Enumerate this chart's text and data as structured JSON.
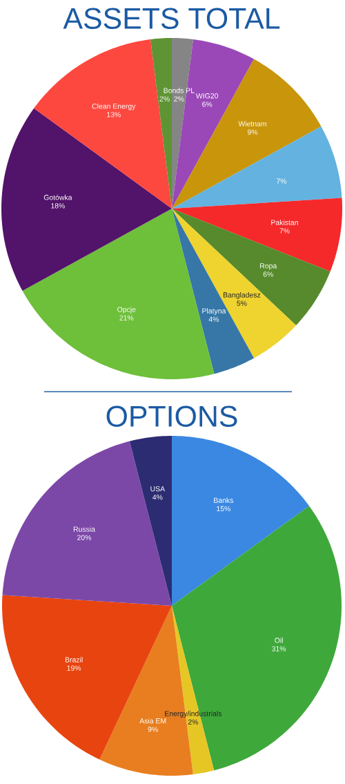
{
  "chart_data": [
    {
      "type": "pie",
      "title": "ASSETS TOTAL",
      "categories": [
        "Bonds PL",
        "WIG20",
        "Wietnam",
        null,
        "Pakistan",
        "Ropa",
        "Bangladesz",
        "Platyna",
        "Opcje",
        "Gotówka",
        "Clean Energy",
        null
      ],
      "values": [
        2,
        6,
        9,
        7,
        7,
        6,
        5,
        4,
        21,
        18,
        13,
        2
      ],
      "value_labels": [
        "2%",
        "6%",
        "9%",
        "7%",
        "7%",
        "6%",
        "5%",
        "4%",
        "21%",
        "18%",
        "13%",
        "2%"
      ],
      "colors": [
        "#858585",
        "#9a48b8",
        "#c8950b",
        "#63b2e0",
        "#f5282a",
        "#578a2c",
        "#efd32e",
        "#3677a7",
        "#6ebf3a",
        "#52136a",
        "#fd4840",
        "#5f9435"
      ]
    },
    {
      "type": "pie",
      "title": "OPTIONS",
      "categories": [
        "Banks",
        "Oil",
        "Energy/industrials",
        "Asia EM",
        "Brazil",
        "Russia",
        "USA"
      ],
      "values": [
        15,
        31,
        2,
        9,
        19,
        20,
        4
      ],
      "value_labels": [
        "15%",
        "31%",
        "2%",
        "9%",
        "19%",
        "20%",
        "4%"
      ],
      "colors": [
        "#3a88e2",
        "#3ea83b",
        "#e6c625",
        "#e87e1f",
        "#e8440f",
        "#7c48a8",
        "#2c2c72"
      ]
    }
  ]
}
